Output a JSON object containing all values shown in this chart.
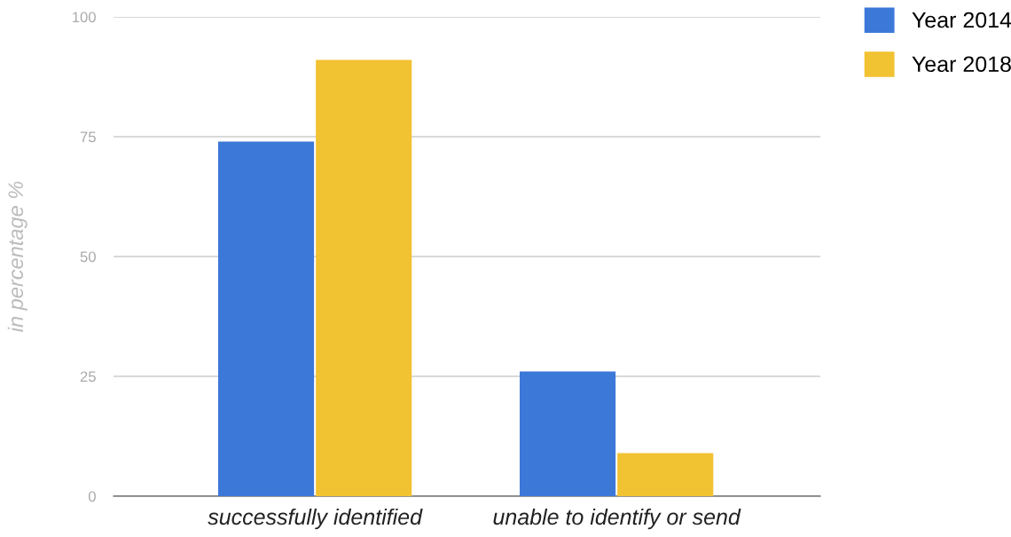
{
  "chart_data": {
    "type": "bar",
    "ylabel": "in percentage %",
    "categories": [
      "successfully identified",
      "unable to identify or send"
    ],
    "series": [
      {
        "name": "Year 2014",
        "color": "#3c78d8",
        "values": [
          74,
          26
        ]
      },
      {
        "name": "Year 2018",
        "color": "#f1c232",
        "values": [
          91,
          9
        ]
      }
    ],
    "ylim": [
      0,
      100
    ],
    "yticks": [
      0,
      25,
      50,
      75,
      100
    ],
    "grid": "y",
    "legend": "top right"
  }
}
